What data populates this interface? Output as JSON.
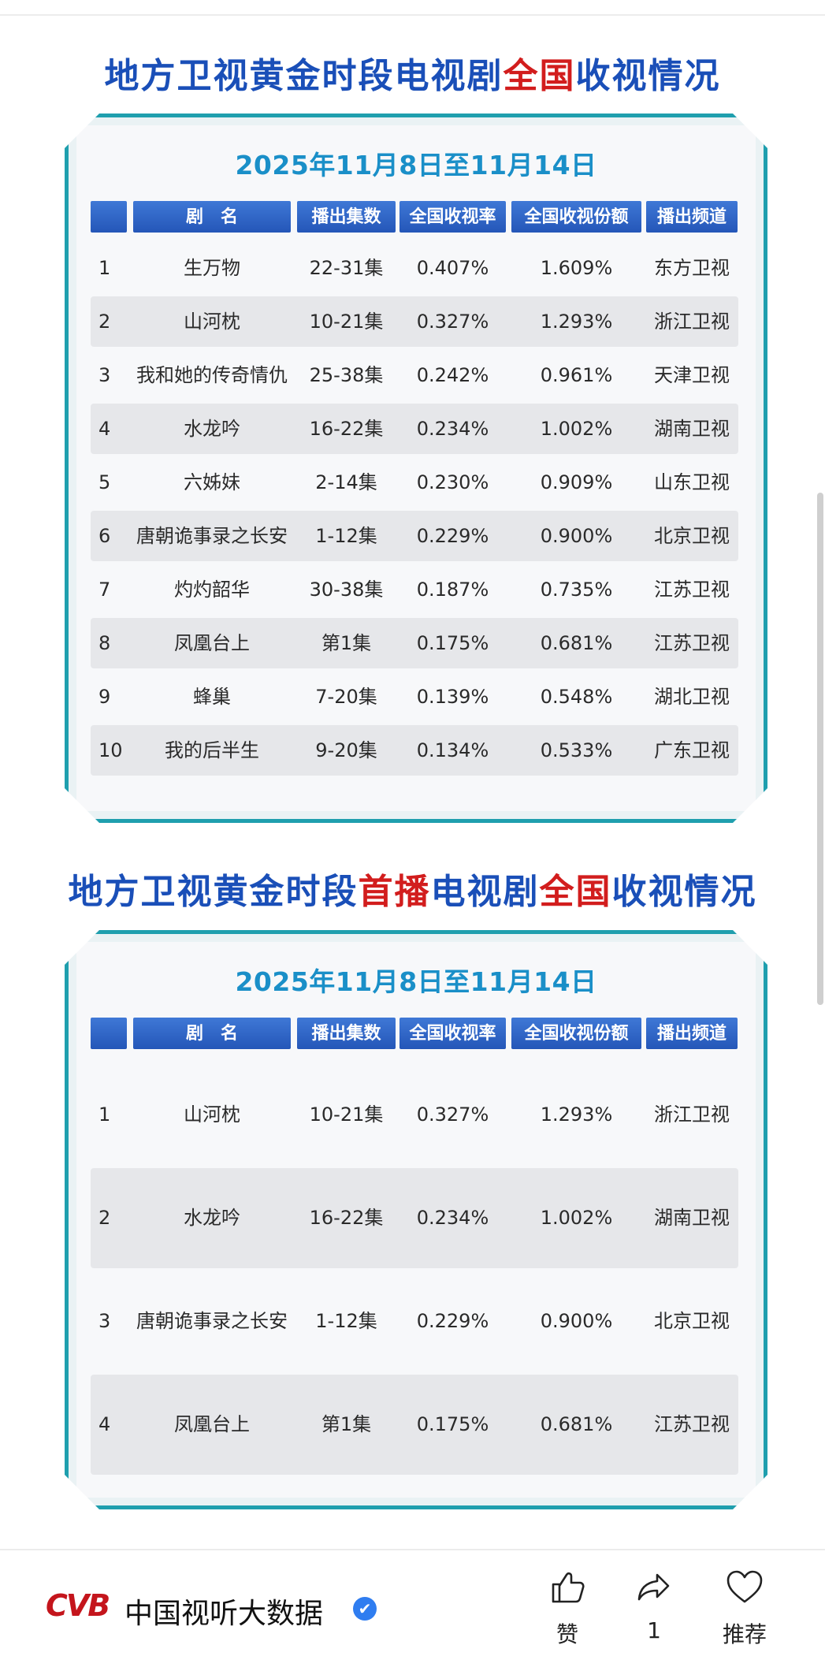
{
  "titles": {
    "first": {
      "part1": "地方卫视黄金时段电视剧",
      "red1": "全国",
      "part2": "收视情况"
    },
    "second": {
      "part1": "地方卫视黄金时段",
      "red1": "首播",
      "part2": "电视剧",
      "red2": "全国",
      "part3": "收视情况"
    }
  },
  "date_range": "2025年11月8日至11月14日",
  "headers": [
    "",
    "剧　名",
    "播出集数",
    "全国收视率",
    "全国收视份额",
    "播出频道"
  ],
  "table1": [
    {
      "rank": "1",
      "name": "生万物",
      "episodes": "22-31集",
      "rating": "0.407%",
      "share": "1.609%",
      "channel": "东方卫视"
    },
    {
      "rank": "2",
      "name": "山河枕",
      "episodes": "10-21集",
      "rating": "0.327%",
      "share": "1.293%",
      "channel": "浙江卫视"
    },
    {
      "rank": "3",
      "name": "我和她的传奇情仇",
      "episodes": "25-38集",
      "rating": "0.242%",
      "share": "0.961%",
      "channel": "天津卫视"
    },
    {
      "rank": "4",
      "name": "水龙吟",
      "episodes": "16-22集",
      "rating": "0.234%",
      "share": "1.002%",
      "channel": "湖南卫视"
    },
    {
      "rank": "5",
      "name": "六姊妹",
      "episodes": "2-14集",
      "rating": "0.230%",
      "share": "0.909%",
      "channel": "山东卫视"
    },
    {
      "rank": "6",
      "name": "唐朝诡事录之长安",
      "episodes": "1-12集",
      "rating": "0.229%",
      "share": "0.900%",
      "channel": "北京卫视"
    },
    {
      "rank": "7",
      "name": "灼灼韶华",
      "episodes": "30-38集",
      "rating": "0.187%",
      "share": "0.735%",
      "channel": "江苏卫视"
    },
    {
      "rank": "8",
      "name": "凤凰台上",
      "episodes": "第1集",
      "rating": "0.175%",
      "share": "0.681%",
      "channel": "江苏卫视"
    },
    {
      "rank": "9",
      "name": "蜂巢",
      "episodes": "7-20集",
      "rating": "0.139%",
      "share": "0.548%",
      "channel": "湖北卫视"
    },
    {
      "rank": "10",
      "name": "我的后半生",
      "episodes": "9-20集",
      "rating": "0.134%",
      "share": "0.533%",
      "channel": "广东卫视"
    }
  ],
  "table2": [
    {
      "rank": "1",
      "name": "山河枕",
      "episodes": "10-21集",
      "rating": "0.327%",
      "share": "1.293%",
      "channel": "浙江卫视"
    },
    {
      "rank": "2",
      "name": "水龙吟",
      "episodes": "16-22集",
      "rating": "0.234%",
      "share": "1.002%",
      "channel": "湖南卫视"
    },
    {
      "rank": "3",
      "name": "唐朝诡事录之长安",
      "episodes": "1-12集",
      "rating": "0.229%",
      "share": "0.900%",
      "channel": "北京卫视"
    },
    {
      "rank": "4",
      "name": "凤凰台上",
      "episodes": "第1集",
      "rating": "0.175%",
      "share": "0.681%",
      "channel": "江苏卫视"
    }
  ],
  "footer": {
    "logo": "CVB",
    "account": "中国视听大数据",
    "verified_icon": "✔",
    "like_label": "赞",
    "share_count": "1",
    "recommend_label": "推荐"
  },
  "colors": {
    "title_blue": "#1a4fb8",
    "title_red": "#d21d1d",
    "panel_border": "#1f9fae",
    "date_blue": "#1a8fc8",
    "header_blue": "#2456b8"
  }
}
